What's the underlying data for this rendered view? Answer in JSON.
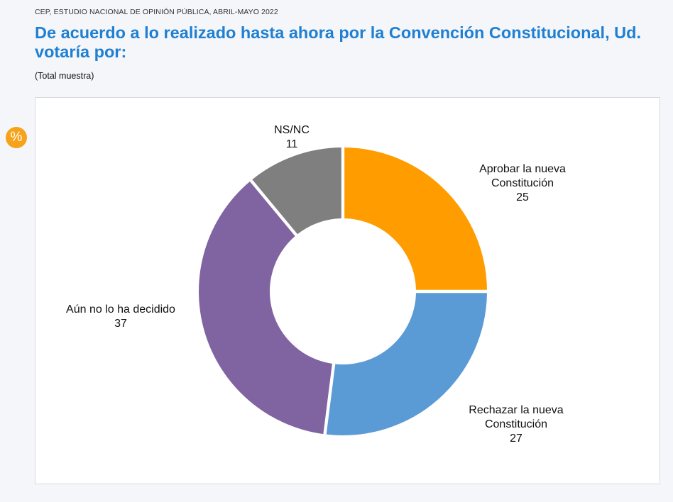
{
  "header": {
    "source": "CEP, ESTUDIO NACIONAL DE OPINIÓN PÚBLICA, ABRIL-MAYO 2022",
    "title": "De acuerdo a lo realizado hasta ahora por la Convención Constitucional, Ud. votaría por:",
    "subtitle": "(Total muestra)"
  },
  "badge": {
    "text": "%",
    "color": "#f7a21b"
  },
  "chart_data": {
    "type": "pie",
    "donut": true,
    "unit": "%",
    "categories": [
      "Aprobar la nueva Constitución",
      "Rechazar la nueva Constitución",
      "Aún no lo ha decidido",
      "NS/NC"
    ],
    "values": [
      25,
      27,
      37,
      11
    ],
    "colors": [
      "#ff9c00",
      "#5b9bd5",
      "#8064a2",
      "#7f7f7f"
    ],
    "label_lines": [
      [
        "Aprobar la nueva",
        "Constitución"
      ],
      [
        "Rechazar la nueva",
        "Constitución"
      ],
      [
        "Aún no lo ha decidido"
      ],
      [
        "NS/NC"
      ]
    ],
    "start_angle": "12 o'clock",
    "direction": "clockwise",
    "legend": "none (labels beside slices)"
  }
}
